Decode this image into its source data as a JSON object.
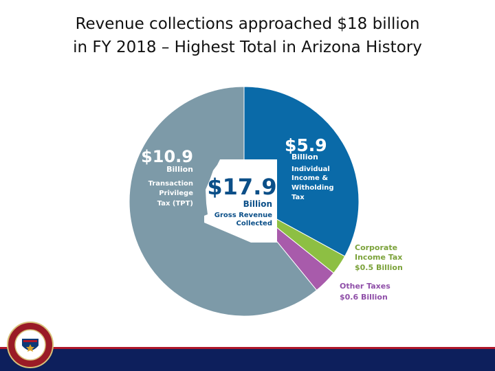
{
  "title": {
    "line1": "Revenue collections approached $18 billion",
    "line2": "in FY 2018 – Highest Total in Arizona History"
  },
  "chart_data": {
    "type": "pie",
    "total": {
      "value": 17.9,
      "amount": "$17.9",
      "unit": "Billion",
      "caption_line1": "Gross Revenue",
      "caption_line2": "Collected"
    },
    "slices": [
      {
        "name": "Individual Income & Withholding Tax",
        "value": 5.9,
        "color": "#0a6aa8",
        "amount": "$5.9",
        "unit": "Billion",
        "label_lines": [
          "Individual",
          "Income &",
          "Witholding",
          "Tax"
        ],
        "label_color": "#ffffff"
      },
      {
        "name": "Corporate Income Tax",
        "value": 0.5,
        "color": "#8dbf43",
        "label_lines": [
          "Corporate",
          "Income Tax"
        ],
        "amount_line": "$0.5 Billion",
        "label_color": "#7ba23a"
      },
      {
        "name": "Other Taxes",
        "value": 0.6,
        "color": "#a85bab",
        "label_lines": [
          "Other Taxes"
        ],
        "amount_line": "$0.6 Billion",
        "label_color": "#8f4fa8"
      },
      {
        "name": "Transaction Privilege Tax (TPT)",
        "value": 10.9,
        "color": "#7d9aa8",
        "amount": "$10.9",
        "unit": "Billion",
        "label_lines": [
          "Transaction",
          "Privilege",
          "Tax (TPT)"
        ],
        "label_color": "#ffffff"
      }
    ]
  },
  "footer": {
    "seal_text": "ARIZONA DEPARTMENT OF REVENUE",
    "colors": {
      "bar": "#0d1f5c",
      "stripe": "#b0172a",
      "seal": "#9a1b26"
    }
  }
}
